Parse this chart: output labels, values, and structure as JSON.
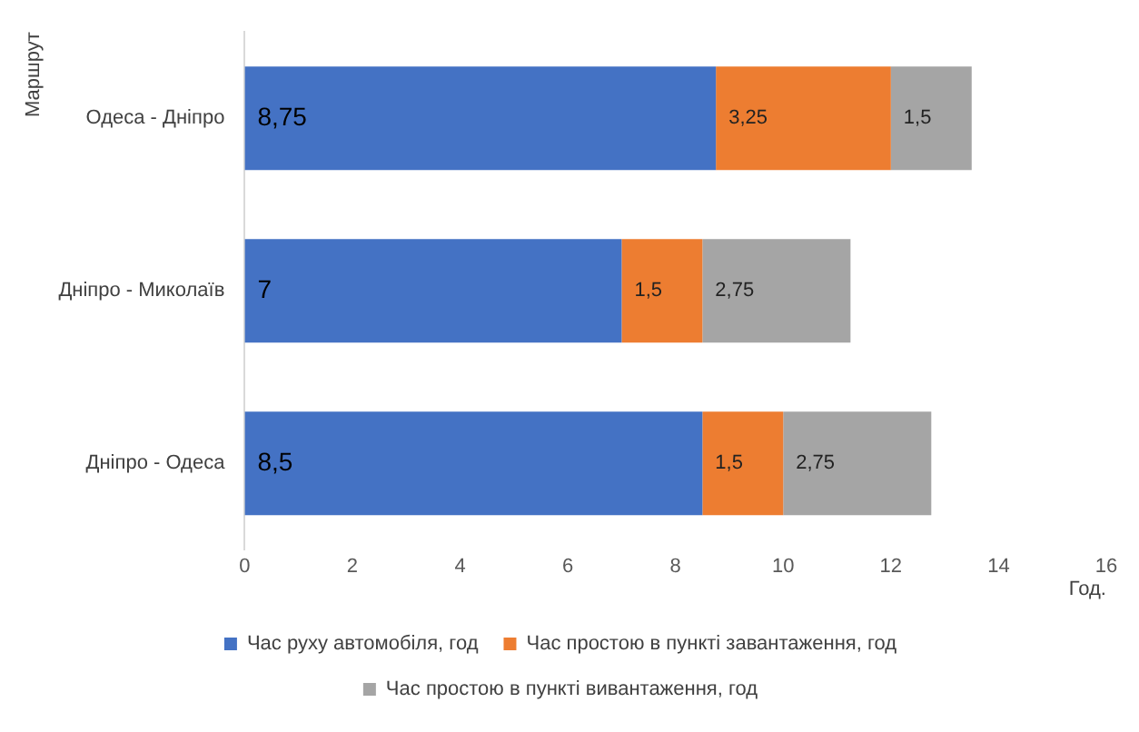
{
  "chart_data": {
    "type": "bar",
    "orientation": "horizontal",
    "stacked": true,
    "categories": [
      "Одеса - Дніпро",
      "Дніпро - Миколаїв",
      "Дніпро - Одеса"
    ],
    "series": [
      {
        "name": "Час руху автомобіля, год",
        "color": "#4472c4",
        "values": [
          8.75,
          7,
          8.5
        ],
        "value_labels": [
          "8,75",
          "7",
          "8,5"
        ]
      },
      {
        "name": "Час простою в пункті завантаження, год",
        "color": "#ed7d31",
        "values": [
          3.25,
          1.5,
          1.5
        ],
        "value_labels": [
          "3,25",
          "1,5",
          "1,5"
        ]
      },
      {
        "name": "Час простою в пункті вивантаження, год",
        "color": "#a5a5a5",
        "values": [
          1.5,
          2.75,
          2.75
        ],
        "value_labels": [
          "1,5",
          "2,75",
          "2,75"
        ]
      }
    ],
    "xlim": [
      0,
      16
    ],
    "xticks": [
      0,
      2,
      4,
      6,
      8,
      10,
      12,
      14,
      16
    ],
    "xlabel": "Год.",
    "ylabel": "Маршрут",
    "grid": false,
    "legend": "bottom"
  }
}
